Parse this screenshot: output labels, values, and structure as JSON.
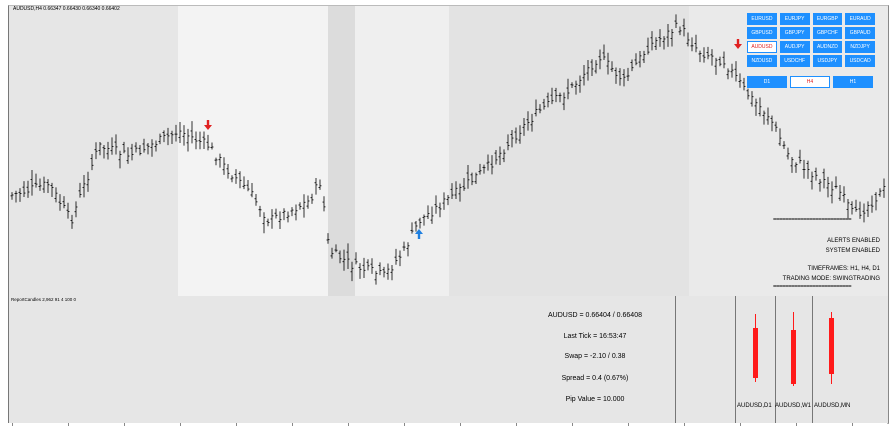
{
  "main_chart": {
    "title": "AUDUSD,H4  0.66347 0.66430 0.66340 0.66402",
    "currency_pairs": [
      [
        "EURUSD",
        "EURJPY",
        "EURGBP",
        "EURAUD"
      ],
      [
        "GBPUSD",
        "GBPJPY",
        "GBPCHF",
        "GBPAUD"
      ],
      [
        "AUDUSD",
        "AUDJPY",
        "AUDNZD",
        "NZDJPY"
      ],
      [
        "NZDUSD",
        "USDCHF",
        "USDJPY",
        "USDCAD"
      ]
    ],
    "active_pair": "AUDUSD",
    "timeframes": [
      "D1",
      "H4",
      "H1"
    ],
    "active_timeframe": "H4",
    "dashes_top": "==========================",
    "alerts": "ALERTS ENABLED",
    "system": "SYSTEM ENABLED",
    "timeframes_info": "TIMEFRAMES: H1, H4, D1",
    "trading_mode": "TRADING MODE: SWINGTRADING",
    "dashes_bottom": "==========================",
    "accent_blue": "#1e90ff",
    "signal_red": "#e02020",
    "signal_blue": "#1e7fe0"
  },
  "sub_panel": {
    "title": "ReportCandles 2,962 91 4 100 0",
    "bid_ask": "AUDUSD = 0.66404 / 0.66408",
    "last_tick": "Last Tick = 16:53:47",
    "swap": "Swap = -2.10 / 0.38",
    "spread": "Spread = 0.4  (0.67%)",
    "pip_value": "Pip Value = 10.000",
    "candles": [
      {
        "label": "AUDUSD,D1"
      },
      {
        "label": "AUDUSD,W1"
      },
      {
        "label": "AUDUSD,MN"
      }
    ]
  }
}
